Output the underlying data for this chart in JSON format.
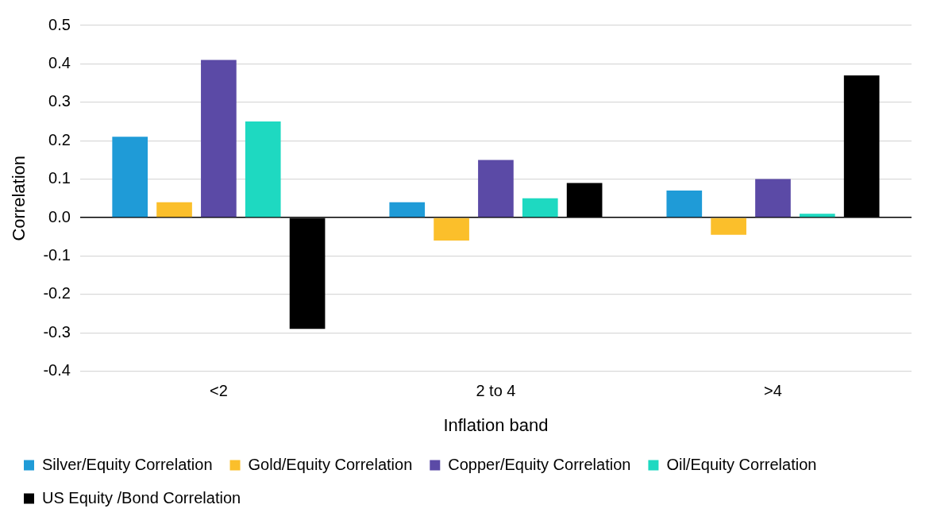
{
  "chart_data": {
    "type": "bar",
    "xlabel": "Inflation band",
    "ylabel": "Correlation",
    "categories": [
      "<2",
      "2 to 4",
      ">4"
    ],
    "series": [
      {
        "name": "Silver/Equity Correlation",
        "color": "#1f9bd7",
        "values": [
          0.21,
          0.04,
          0.07
        ]
      },
      {
        "name": "Gold/Equity Correlation",
        "color": "#fbbf2b",
        "values": [
          0.04,
          -0.06,
          -0.045
        ]
      },
      {
        "name": "Copper/Equity Correlation",
        "color": "#5b4aa6",
        "values": [
          0.41,
          0.15,
          0.1
        ]
      },
      {
        "name": "Oil/Equity Correlation",
        "color": "#1ed9c1",
        "values": [
          0.25,
          0.05,
          0.01
        ]
      },
      {
        "name": "US Equity /Bond Correlation",
        "color": "#000000",
        "values": [
          -0.29,
          0.09,
          0.37
        ]
      }
    ],
    "ylim": [
      -0.4,
      0.5
    ],
    "yticks": [
      -0.4,
      -0.3,
      -0.2,
      -0.1,
      {
        "value": 0,
        "label": "0.0"
      },
      0.1,
      0.2,
      0.3,
      0.4,
      0.5
    ],
    "grid": "y",
    "legend": "bottom"
  }
}
